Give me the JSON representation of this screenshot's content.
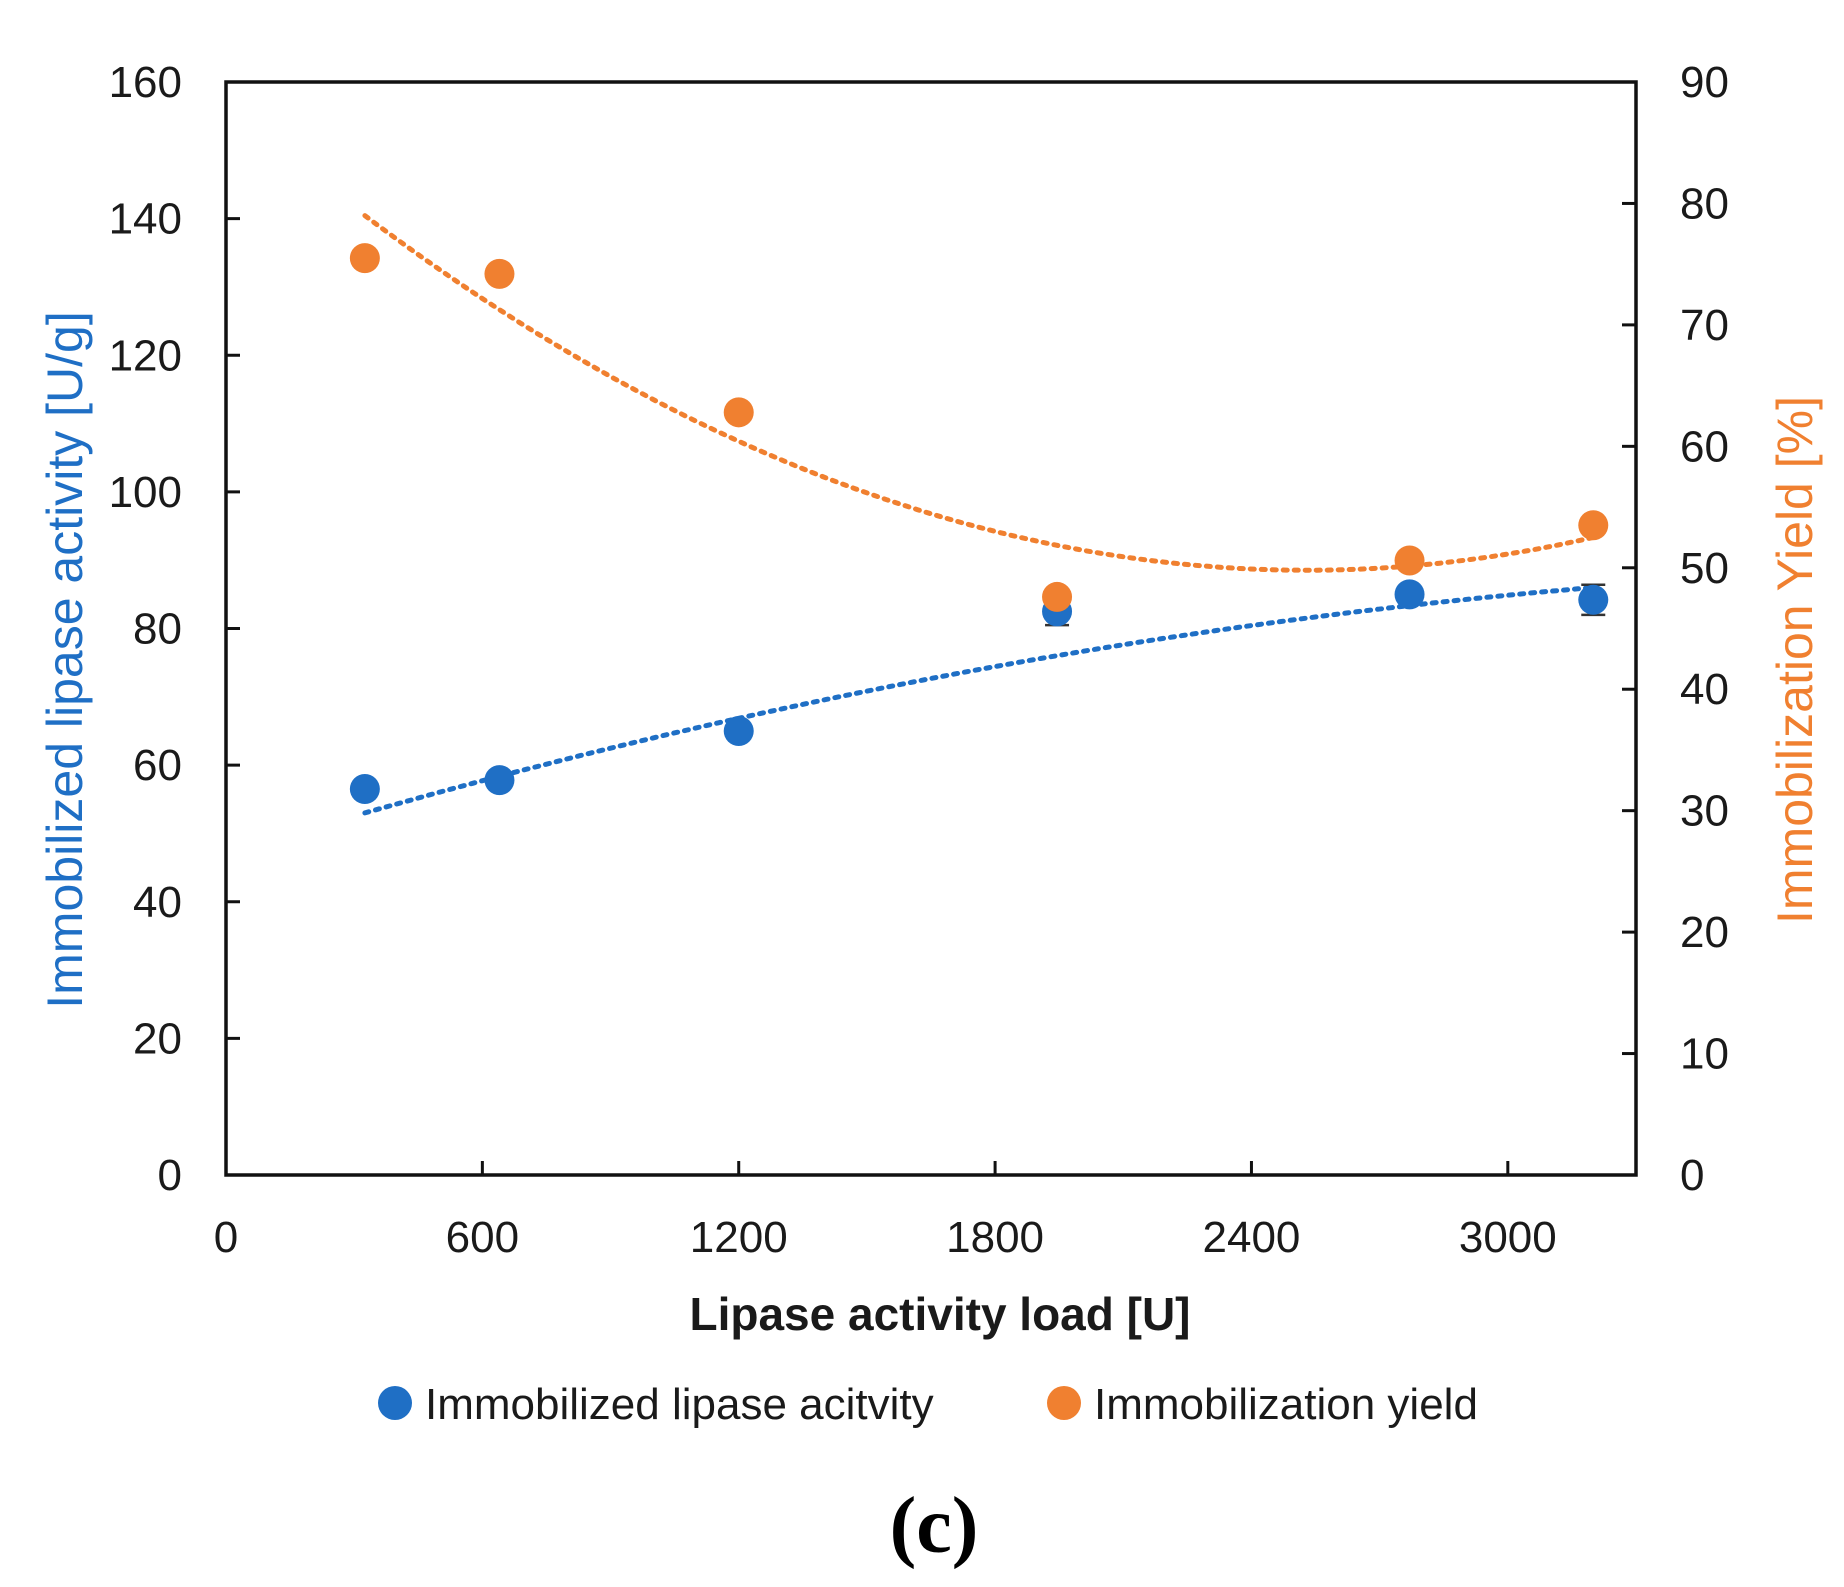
{
  "chart_data": {
    "type": "scatter",
    "panel_label": "(c)",
    "xlabel": "Lipase activity load [U]",
    "xlim": [
      0,
      3300
    ],
    "xticks": [
      0,
      600,
      1200,
      1800,
      2400,
      3000
    ],
    "xtick_labels": [
      "0",
      "600",
      "1200",
      "1800",
      "2400",
      "3000"
    ],
    "ylabel_left": "Immobilized lipase activity [U/g]",
    "ylim_left": [
      0,
      160
    ],
    "yticks_left": [
      0,
      20,
      40,
      60,
      80,
      100,
      120,
      140,
      160
    ],
    "ytick_labels_left": [
      "0",
      "20",
      "40",
      "60",
      "80",
      "100",
      "120",
      "140",
      "160"
    ],
    "ylabel_right": "Immobilization Yield [%]",
    "ylim_right": [
      0,
      90
    ],
    "yticks_right": [
      0,
      10,
      20,
      30,
      40,
      50,
      60,
      70,
      80,
      90
    ],
    "ytick_labels_right": [
      "0",
      "10",
      "20",
      "30",
      "40",
      "50",
      "60",
      "70",
      "80",
      "90"
    ],
    "legend_position": "bottom-center",
    "series": [
      {
        "name": "Immobilized lipase acitvity",
        "axis": "left",
        "color": "#1f6fc5",
        "x": [
          325,
          640,
          1200,
          1945,
          2770,
          3200
        ],
        "y": [
          56.5,
          57.8,
          65.0,
          82.5,
          85.0,
          84.2
        ],
        "yerr": [
          0.8,
          0.8,
          0.8,
          2.0,
          0.8,
          2.2
        ],
        "trendline": {
          "type": "polynomial",
          "x_range": [
            325,
            3200
          ],
          "y_start": 53.0,
          "y_end": 86.0,
          "curvature": "concave-down"
        }
      },
      {
        "name": "Immobilization yield",
        "axis": "right",
        "color": "#f08030",
        "x": [
          325,
          640,
          1200,
          1945,
          2770,
          3200
        ],
        "y": [
          75.5,
          74.2,
          62.8,
          47.6,
          50.6,
          53.5
        ],
        "yerr": [
          0.6,
          0.6,
          0.6,
          0.6,
          0.6,
          0.6
        ],
        "trendline": {
          "type": "polynomial",
          "x_range": [
            325,
            3200
          ],
          "y_start": 79.0,
          "y_min": 49.8,
          "y_end": 52.5,
          "curvature": "concave-up"
        }
      }
    ]
  }
}
